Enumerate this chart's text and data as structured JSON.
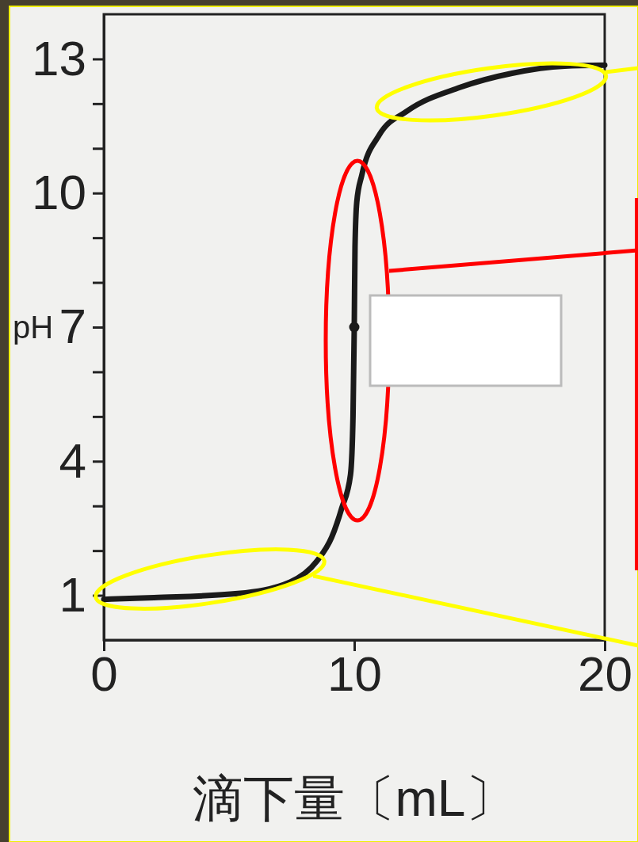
{
  "chart_data": {
    "type": "line",
    "xlabel": "滴下量〔mL〕",
    "ylabel": "pH",
    "xlim": [
      0,
      20
    ],
    "ylim": [
      0,
      14
    ],
    "xticks": [
      0,
      10,
      20
    ],
    "yticks": [
      1,
      {
        "value": 2,
        "label": null
      },
      {
        "value": 3,
        "label": null
      },
      4,
      {
        "value": 5,
        "label": null
      },
      {
        "value": 6,
        "label": null
      },
      7,
      {
        "value": 8,
        "label": null
      },
      {
        "value": 9,
        "label": null
      },
      10,
      {
        "value": 11,
        "label": null
      },
      {
        "value": 12,
        "label": null
      },
      13
    ],
    "grid": false,
    "series": [
      {
        "color": "#1a1a1a",
        "marker": "none",
        "line_style": "solid",
        "x": [
          0,
          2,
          5.35,
          7.45,
          8.5,
          9.1,
          9.5,
          9.85,
          9.95,
          10,
          10.03,
          10.1,
          10.3,
          11.0,
          12.1,
          14.2,
          16.3,
          18.4,
          20
        ],
        "values": [
          0.91,
          0.95,
          1.04,
          1.3,
          1.76,
          2.3,
          2.95,
          3.7,
          5,
          7,
          8.8,
          9.8,
          10.4,
          11.3,
          11.83,
          12.36,
          12.68,
          12.84,
          12.86
        ]
      },
      {
        "type": "scatter",
        "color": "#1a1a1a",
        "marker": "circle",
        "x": [
          10
        ],
        "values": [
          7
        ]
      }
    ]
  }
}
